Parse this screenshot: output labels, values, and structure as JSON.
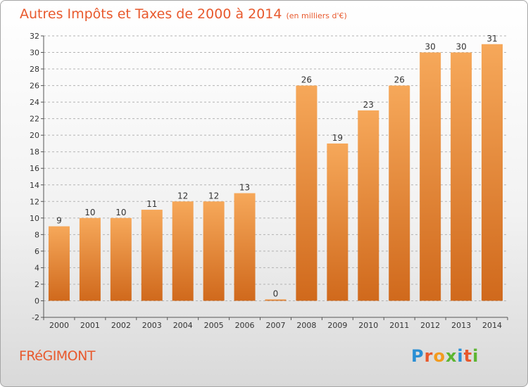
{
  "title": "Autres Impôts et Taxes de 2000 à 2014",
  "subtitle": "(en milliers d'€)",
  "place": "FRéGIMONT",
  "logo": [
    "P",
    "r",
    "o",
    "x",
    "i",
    "t",
    "i"
  ],
  "colors": {
    "bar_top": "#f6a85a",
    "bar_bottom": "#d0691c",
    "title": "#e8592d",
    "grid": "#b3b3b3"
  },
  "chart_data": {
    "type": "bar",
    "title": "Autres Impôts et Taxes de 2000 à 2014",
    "subtitle": "(en milliers d'€)",
    "categories": [
      "2000",
      "2001",
      "2002",
      "2003",
      "2004",
      "2005",
      "2006",
      "2007",
      "2008",
      "2009",
      "2010",
      "2011",
      "2012",
      "2013",
      "2014"
    ],
    "values": [
      9,
      10,
      10,
      11,
      12,
      12,
      13,
      0,
      26,
      19,
      23,
      26,
      30,
      30,
      31
    ],
    "ylim": [
      -2,
      32
    ],
    "yticks": [
      -2,
      0,
      2,
      4,
      6,
      8,
      10,
      12,
      14,
      16,
      18,
      20,
      22,
      24,
      26,
      28,
      30,
      32
    ],
    "grid": true,
    "xlabel": "",
    "ylabel": ""
  }
}
